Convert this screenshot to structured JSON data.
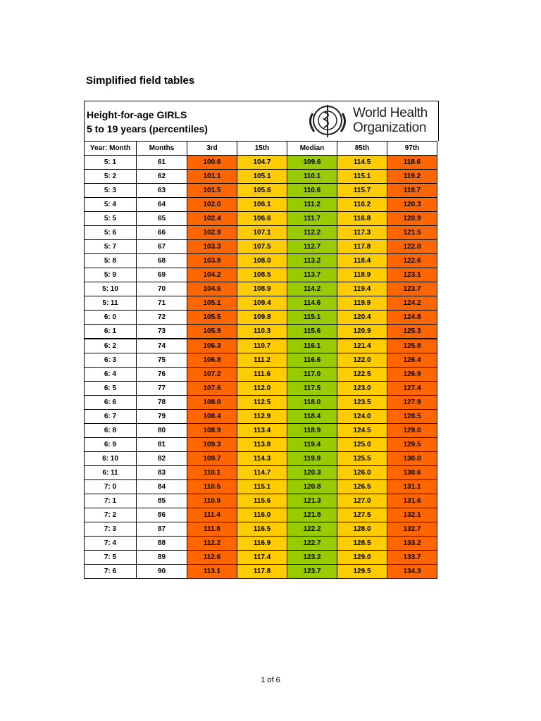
{
  "header": {
    "title": "Simplified field tables"
  },
  "table_header": {
    "line1": "Height-for-age GIRLS",
    "line2": "5 to 19 years (percentiles)",
    "logo_line1": "World Health",
    "logo_line2": "Organization"
  },
  "table": {
    "columns": [
      "Year: Month",
      "Months",
      "3rd",
      "15th",
      "Median",
      "85th",
      "97th"
    ],
    "rows": [
      [
        "5: 1",
        "61",
        "100.6",
        "104.7",
        "109.6",
        "114.5",
        "118.6"
      ],
      [
        "5: 2",
        "62",
        "101.1",
        "105.1",
        "110.1",
        "115.1",
        "119.2"
      ],
      [
        "5: 3",
        "63",
        "101.5",
        "105.6",
        "110.6",
        "115.7",
        "119.7"
      ],
      [
        "5: 4",
        "64",
        "102.0",
        "106.1",
        "111.2",
        "116.2",
        "120.3"
      ],
      [
        "5: 5",
        "65",
        "102.4",
        "106.6",
        "111.7",
        "116.8",
        "120.9"
      ],
      [
        "5: 6",
        "66",
        "102.9",
        "107.1",
        "112.2",
        "117.3",
        "121.5"
      ],
      [
        "5: 7",
        "67",
        "103.3",
        "107.5",
        "112.7",
        "117.8",
        "122.0"
      ],
      [
        "5: 8",
        "68",
        "103.8",
        "108.0",
        "113.2",
        "118.4",
        "122.6"
      ],
      [
        "5: 9",
        "69",
        "104.2",
        "108.5",
        "113.7",
        "118.9",
        "123.1"
      ],
      [
        "5: 10",
        "70",
        "104.6",
        "108.9",
        "114.2",
        "119.4",
        "123.7"
      ],
      [
        "5: 11",
        "71",
        "105.1",
        "109.4",
        "114.6",
        "119.9",
        "124.2"
      ],
      [
        "6: 0",
        "72",
        "105.5",
        "109.8",
        "115.1",
        "120.4",
        "124.8"
      ],
      [
        "6: 1",
        "73",
        "105.9",
        "110.3",
        "115.6",
        "120.9",
        "125.3"
      ],
      [
        "6: 2",
        "74",
        "106.3",
        "110.7",
        "116.1",
        "121.4",
        "125.8"
      ],
      [
        "6: 3",
        "75",
        "106.8",
        "111.2",
        "116.6",
        "122.0",
        "126.4"
      ],
      [
        "6: 4",
        "76",
        "107.2",
        "111.6",
        "117.0",
        "122.5",
        "126.9"
      ],
      [
        "6: 5",
        "77",
        "107.6",
        "112.0",
        "117.5",
        "123.0",
        "127.4"
      ],
      [
        "6: 6",
        "78",
        "108.0",
        "112.5",
        "118.0",
        "123.5",
        "127.9"
      ],
      [
        "6: 7",
        "79",
        "108.4",
        "112.9",
        "118.4",
        "124.0",
        "128.5"
      ],
      [
        "6: 8",
        "80",
        "108.9",
        "113.4",
        "118.9",
        "124.5",
        "129.0"
      ],
      [
        "6: 9",
        "81",
        "109.3",
        "113.8",
        "119.4",
        "125.0",
        "129.5"
      ],
      [
        "6: 10",
        "82",
        "109.7",
        "114.3",
        "119.9",
        "125.5",
        "130.0"
      ],
      [
        "6: 11",
        "83",
        "110.1",
        "114.7",
        "120.3",
        "126.0",
        "130.6"
      ],
      [
        "7: 0",
        "84",
        "110.5",
        "115.1",
        "120.8",
        "126.5",
        "131.1"
      ],
      [
        "7: 1",
        "85",
        "110.9",
        "115.6",
        "121.3",
        "127.0",
        "131.6"
      ],
      [
        "7: 2",
        "86",
        "111.4",
        "116.0",
        "121.8",
        "127.5",
        "132.1"
      ],
      [
        "7: 3",
        "87",
        "111.8",
        "116.5",
        "122.2",
        "128.0",
        "132.7"
      ],
      [
        "7: 4",
        "88",
        "112.2",
        "116.9",
        "122.7",
        "128.5",
        "133.2"
      ],
      [
        "7: 5",
        "89",
        "112.6",
        "117.4",
        "123.2",
        "129.0",
        "133.7"
      ],
      [
        "7: 6",
        "90",
        "113.1",
        "117.8",
        "123.7",
        "129.5",
        "134.3"
      ]
    ]
  },
  "footer": {
    "page": "1 of 6"
  }
}
